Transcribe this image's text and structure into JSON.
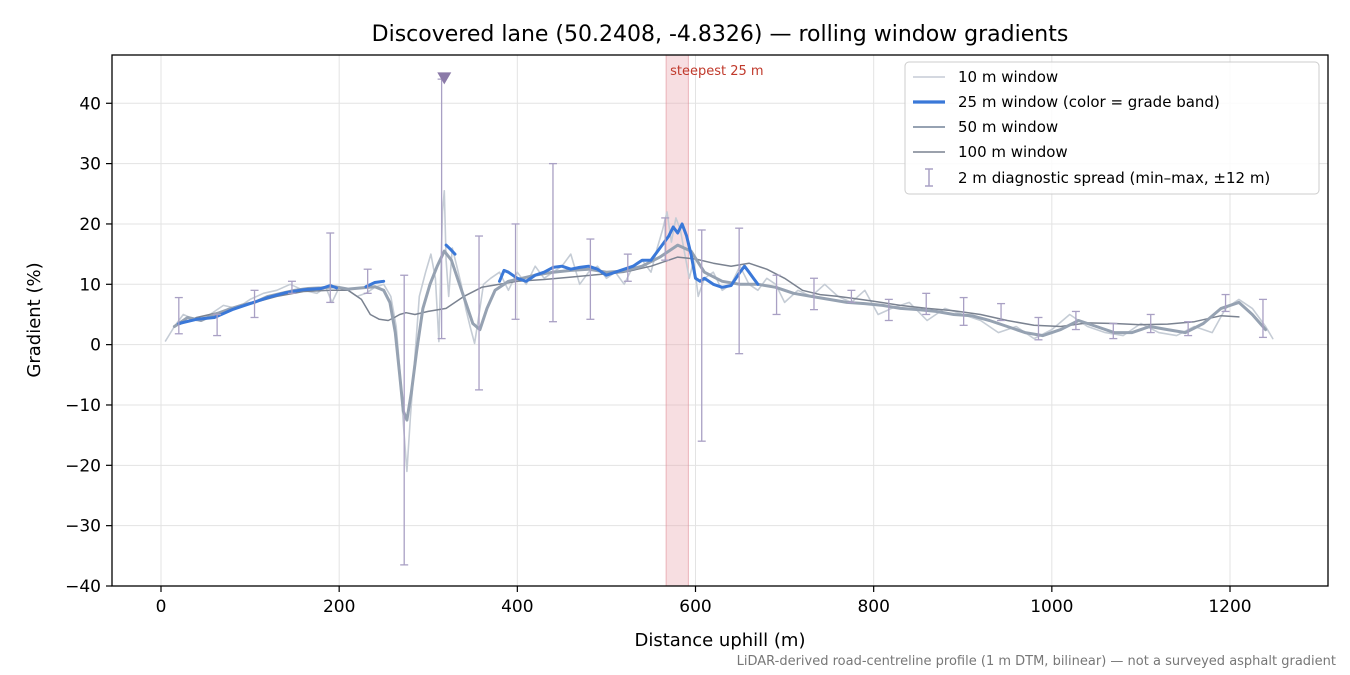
{
  "chart_data": {
    "type": "line",
    "title": "Discovered lane (50.2408, -4.8326) — rolling window gradients",
    "xlabel": "Distance uphill (m)",
    "ylabel": "Gradient (%)",
    "xlim": [
      -55,
      1310
    ],
    "ylim": [
      -40,
      48
    ],
    "x_ticks": [
      0,
      200,
      400,
      600,
      800,
      1000,
      1200
    ],
    "y_ticks": [
      40,
      30,
      20,
      10,
      0,
      -10,
      -20,
      -30,
      -40
    ],
    "grid": true,
    "legend_position": "top-right",
    "footnote": "LiDAR-derived road-centreline profile (1 m DTM, bilinear) — not a surveyed asphalt gradient",
    "steepest_band": {
      "label": "steepest 25 m",
      "x_start": 567,
      "x_end": 592,
      "color": "#e8a0a8"
    },
    "peak_marker": {
      "x": 318,
      "y": 44.3,
      "color": "#8b7aa8"
    },
    "colors": {
      "w10": "#c5ccd5",
      "w25": "#3a78d8",
      "w50": "#96a2b2",
      "w100": "#7a8290",
      "spread": "#a9a0c4"
    },
    "series": [
      {
        "name": "10 m window",
        "x": [
          5,
          15,
          25,
          40,
          55,
          70,
          85,
          100,
          115,
          130,
          145,
          160,
          175,
          185,
          192,
          200,
          210,
          220,
          230,
          240,
          250,
          258,
          264,
          268,
          272,
          276,
          280,
          285,
          290,
          297,
          303,
          308,
          312,
          316,
          318,
          320,
          323,
          327,
          332,
          337,
          342,
          347,
          352,
          357,
          362,
          370,
          380,
          390,
          400,
          410,
          420,
          430,
          440,
          450,
          460,
          470,
          480,
          490,
          500,
          510,
          520,
          530,
          540,
          550,
          557,
          563,
          568,
          573,
          578,
          583,
          588,
          593,
          598,
          603,
          610,
          620,
          630,
          640,
          650,
          660,
          670,
          680,
          690,
          700,
          715,
          730,
          745,
          760,
          775,
          790,
          805,
          820,
          840,
          860,
          880,
          900,
          920,
          940,
          960,
          980,
          1000,
          1020,
          1040,
          1060,
          1080,
          1100,
          1120,
          1140,
          1160,
          1180,
          1195,
          1210,
          1225,
          1240,
          1248
        ],
        "y": [
          0.6,
          3.0,
          5.0,
          4.0,
          5.0,
          6.5,
          6.0,
          7.5,
          8.5,
          9.0,
          10.0,
          9.0,
          8.5,
          9.5,
          7.0,
          9.5,
          9.0,
          8.0,
          8.5,
          9.5,
          10.0,
          8.0,
          3.0,
          -4.0,
          -13.0,
          -21.0,
          -12.0,
          -2.0,
          8.0,
          12.0,
          15.0,
          11.0,
          0.5,
          22.0,
          25.5,
          14.0,
          8.0,
          16.0,
          13.0,
          10.0,
          6.0,
          3.0,
          0.2,
          5.0,
          10.0,
          11.0,
          12.0,
          9.0,
          12.0,
          10.0,
          13.0,
          11.0,
          12.0,
          13.0,
          15.0,
          10.0,
          12.0,
          13.0,
          11.0,
          12.0,
          10.0,
          13.0,
          14.0,
          12.0,
          16.0,
          19.0,
          22.0,
          17.0,
          21.0,
          19.0,
          15.0,
          11.0,
          14.0,
          8.0,
          11.0,
          12.0,
          9.0,
          10.0,
          13.0,
          10.0,
          9.0,
          11.0,
          10.0,
          7.0,
          9.0,
          8.0,
          10.0,
          8.0,
          7.0,
          9.0,
          5.0,
          6.0,
          7.0,
          4.0,
          6.0,
          5.0,
          4.0,
          2.0,
          3.0,
          1.0,
          2.5,
          5.0,
          3.0,
          2.0,
          1.5,
          3.5,
          2.0,
          1.5,
          3.0,
          2.0,
          6.0,
          7.5,
          6.0,
          3.0,
          1.0
        ]
      },
      {
        "name": "25 m window (color = grade band)",
        "x": [
          20,
          40,
          60,
          80,
          100,
          120,
          140,
          160,
          180,
          190,
          197,
          230,
          240,
          250,
          320,
          325,
          330,
          380,
          385,
          390,
          400,
          410,
          420,
          430,
          440,
          450,
          460,
          470,
          480,
          490,
          500,
          510,
          520,
          530,
          540,
          550,
          560,
          570,
          575,
          580,
          585,
          590,
          595,
          600,
          605,
          610,
          620,
          630,
          640,
          650,
          655,
          660,
          665,
          670
        ],
        "y": [
          3.5,
          4.2,
          4.5,
          5.8,
          6.8,
          7.8,
          8.6,
          9.1,
          9.3,
          9.8,
          9.4,
          9.6,
          10.3,
          10.5,
          16.5,
          15.8,
          15.0,
          10.5,
          12.3,
          12.0,
          11.0,
          10.5,
          11.5,
          12.0,
          12.8,
          13.0,
          12.5,
          12.8,
          13.0,
          12.5,
          11.5,
          12.0,
          12.5,
          13.0,
          14.0,
          14.0,
          16.0,
          18.0,
          19.5,
          18.5,
          20.0,
          18.0,
          15.0,
          11.0,
          10.5,
          11.0,
          10.0,
          9.5,
          9.8,
          12.0,
          13.0,
          12.0,
          11.0,
          10.0
        ]
      },
      {
        "name": "50 m window",
        "x": [
          15,
          30,
          45,
          60,
          75,
          90,
          105,
          120,
          135,
          150,
          165,
          180,
          195,
          210,
          225,
          240,
          250,
          257,
          263,
          268,
          272,
          276,
          281,
          287,
          294,
          302,
          310,
          318,
          326,
          334,
          342,
          350,
          358,
          366,
          375,
          390,
          405,
          420,
          440,
          460,
          480,
          500,
          520,
          540,
          560,
          580,
          595,
          610,
          630,
          650,
          670,
          690,
          710,
          730,
          750,
          770,
          790,
          810,
          830,
          850,
          870,
          890,
          910,
          930,
          950,
          970,
          990,
          1010,
          1030,
          1050,
          1070,
          1090,
          1110,
          1130,
          1150,
          1170,
          1190,
          1210,
          1225,
          1240
        ],
        "y": [
          3.0,
          4.5,
          4.0,
          5.0,
          5.8,
          6.5,
          7.0,
          8.0,
          8.5,
          9.0,
          9.3,
          9.4,
          9.6,
          9.2,
          9.4,
          9.6,
          9.0,
          7.0,
          2.0,
          -5.0,
          -11.0,
          -12.5,
          -8.0,
          -1.0,
          6.0,
          10.0,
          13.0,
          15.5,
          14.0,
          10.5,
          7.0,
          3.5,
          2.5,
          6.0,
          9.0,
          10.5,
          11.0,
          11.5,
          12.0,
          12.3,
          12.5,
          12.0,
          12.2,
          13.0,
          14.5,
          16.5,
          15.5,
          12.0,
          10.5,
          10.0,
          10.0,
          9.5,
          8.5,
          8.0,
          7.5,
          7.0,
          6.8,
          6.5,
          6.0,
          5.8,
          5.5,
          5.0,
          4.8,
          4.0,
          3.0,
          2.0,
          1.5,
          2.5,
          4.0,
          3.0,
          2.0,
          2.0,
          3.0,
          2.5,
          2.0,
          3.5,
          6.0,
          7.0,
          5.0,
          2.5
        ]
      },
      {
        "name": "100 m window",
        "x": [
          15,
          40,
          70,
          100,
          130,
          160,
          190,
          210,
          225,
          235,
          245,
          255,
          262,
          268,
          275,
          285,
          300,
          320,
          340,
          360,
          380,
          400,
          430,
          460,
          490,
          520,
          550,
          580,
          600,
          620,
          640,
          660,
          680,
          700,
          720,
          740,
          760,
          780,
          800,
          830,
          860,
          890,
          920,
          950,
          980,
          1010,
          1040,
          1070,
          1100,
          1130,
          1160,
          1190,
          1210
        ],
        "y": [
          3.0,
          4.5,
          5.5,
          6.8,
          8.0,
          8.8,
          9.0,
          9.0,
          7.5,
          5.0,
          4.2,
          4.0,
          4.5,
          5.0,
          5.3,
          5.0,
          5.5,
          6.0,
          8.0,
          9.5,
          10.0,
          10.5,
          10.8,
          11.2,
          11.6,
          12.0,
          13.0,
          14.5,
          14.2,
          13.5,
          13.0,
          13.5,
          12.5,
          11.0,
          9.0,
          8.3,
          8.0,
          7.6,
          7.2,
          6.5,
          6.0,
          5.6,
          5.0,
          4.0,
          3.2,
          3.0,
          3.6,
          3.5,
          3.3,
          3.4,
          3.8,
          4.8,
          4.6
        ]
      }
    ],
    "error_bars": {
      "name": "2 m diagnostic spread (min–max, ±12 m)",
      "points": [
        {
          "x": 20,
          "low": 1.8,
          "high": 7.8
        },
        {
          "x": 63,
          "low": 1.5,
          "high": 5.0
        },
        {
          "x": 105,
          "low": 4.5,
          "high": 9.0
        },
        {
          "x": 147,
          "low": 8.5,
          "high": 10.5
        },
        {
          "x": 190,
          "low": 7.0,
          "high": 18.5
        },
        {
          "x": 232,
          "low": 8.5,
          "high": 12.5
        },
        {
          "x": 273,
          "low": -36.5,
          "high": 11.5
        },
        {
          "x": 315,
          "low": 1.0,
          "high": 44.0
        },
        {
          "x": 357,
          "low": -7.5,
          "high": 18.0
        },
        {
          "x": 398,
          "low": 4.2,
          "high": 20.0
        },
        {
          "x": 440,
          "low": 3.8,
          "high": 30.0
        },
        {
          "x": 482,
          "low": 4.2,
          "high": 17.5
        },
        {
          "x": 524,
          "low": 10.5,
          "high": 15.0
        },
        {
          "x": 566,
          "low": 14.0,
          "high": 21.0
        },
        {
          "x": 607,
          "low": -16.0,
          "high": 19.0
        },
        {
          "x": 649,
          "low": -1.5,
          "high": 19.3
        },
        {
          "x": 691,
          "low": 5.0,
          "high": 11.5
        },
        {
          "x": 733,
          "low": 5.8,
          "high": 11.0
        },
        {
          "x": 775,
          "low": 7.0,
          "high": 9.0
        },
        {
          "x": 817,
          "low": 4.0,
          "high": 7.5
        },
        {
          "x": 859,
          "low": 5.0,
          "high": 8.5
        },
        {
          "x": 901,
          "low": 3.2,
          "high": 7.8
        },
        {
          "x": 943,
          "low": 4.0,
          "high": 6.8
        },
        {
          "x": 985,
          "low": 0.8,
          "high": 4.5
        },
        {
          "x": 1027,
          "low": 2.5,
          "high": 5.5
        },
        {
          "x": 1069,
          "low": 1.0,
          "high": 3.5
        },
        {
          "x": 1111,
          "low": 2.0,
          "high": 5.0
        },
        {
          "x": 1153,
          "low": 1.5,
          "high": 3.8
        },
        {
          "x": 1195,
          "low": 5.5,
          "high": 8.3
        },
        {
          "x": 1237,
          "low": 1.2,
          "high": 7.5
        }
      ]
    }
  }
}
